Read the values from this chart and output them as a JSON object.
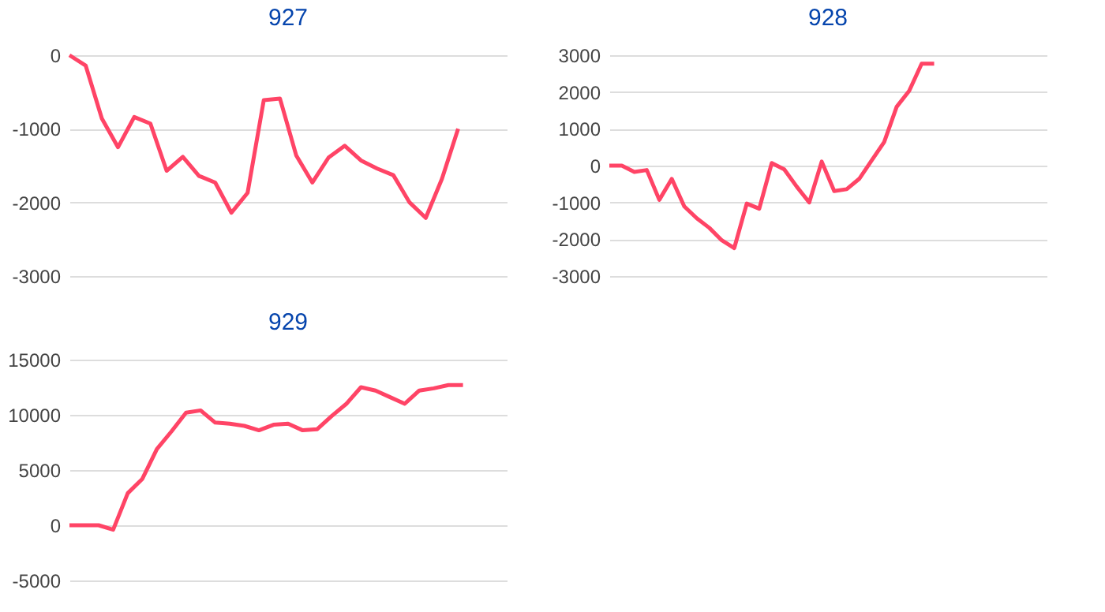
{
  "chart_data": [
    {
      "type": "line",
      "title": "927",
      "categories": [
        null,
        null,
        null,
        null,
        null,
        null,
        null,
        null,
        null,
        null,
        null,
        null,
        null,
        null,
        null,
        null,
        null,
        null,
        null,
        null,
        null,
        null,
        null,
        null,
        null,
        null,
        null,
        null
      ],
      "values": [
        0,
        -140,
        -860,
        -1250,
        -840,
        -930,
        -1570,
        -1380,
        -1640,
        -1730,
        -2140,
        -1870,
        -610,
        -590,
        -1360,
        -1730,
        -1390,
        -1230,
        -1430,
        -1540,
        -1630,
        -2000,
        -2210,
        -1680,
        -1000,
        null,
        null,
        null
      ],
      "color": "#ff4466",
      "ylim": [
        -3000,
        0
      ],
      "yticks": [
        0,
        -1000,
        -2000,
        -3000
      ],
      "grid": "y",
      "tick_labels": "y"
    },
    {
      "type": "line",
      "title": "928",
      "categories": [
        null,
        null,
        null,
        null,
        null,
        null,
        null,
        null,
        null,
        null,
        null,
        null,
        null,
        null,
        null,
        null,
        null,
        null,
        null,
        null,
        null,
        null,
        null,
        null,
        null,
        null,
        null,
        null,
        null,
        null,
        null,
        null,
        null,
        null,
        null,
        null
      ],
      "values": [
        0,
        0,
        -170,
        -120,
        -930,
        -360,
        -1110,
        -1430,
        -1690,
        -2030,
        -2240,
        -1030,
        -1170,
        70,
        -100,
        -570,
        -1000,
        110,
        -690,
        -640,
        -360,
        140,
        640,
        1600,
        2030,
        2770,
        2770,
        null,
        null,
        null,
        null,
        null,
        null,
        null,
        null,
        null
      ],
      "color": "#ff4466",
      "ylim": [
        -3000,
        3000
      ],
      "yticks": [
        3000,
        2000,
        1000,
        0,
        -1000,
        -2000,
        -3000
      ],
      "grid": "y",
      "tick_labels": "y"
    },
    {
      "type": "line",
      "title": "929",
      "categories": [
        null,
        null,
        null,
        null,
        null,
        null,
        null,
        null,
        null,
        null,
        null,
        null,
        null,
        null,
        null,
        null,
        null,
        null,
        null,
        null,
        null,
        null,
        null,
        null,
        null,
        null,
        null,
        null,
        null,
        null,
        null
      ],
      "values": [
        0,
        0,
        0,
        -400,
        2900,
        4200,
        6900,
        8500,
        10200,
        10400,
        9300,
        9200,
        9000,
        8600,
        9100,
        9200,
        8600,
        8700,
        9900,
        11000,
        12500,
        12200,
        11600,
        11000,
        12200,
        12400,
        12700,
        12700,
        null,
        null,
        null
      ],
      "color": "#ff4466",
      "ylim": [
        -5000,
        15000
      ],
      "yticks": [
        15000,
        10000,
        5000,
        0,
        -5000
      ],
      "grid": "y",
      "tick_labels": "y"
    }
  ]
}
